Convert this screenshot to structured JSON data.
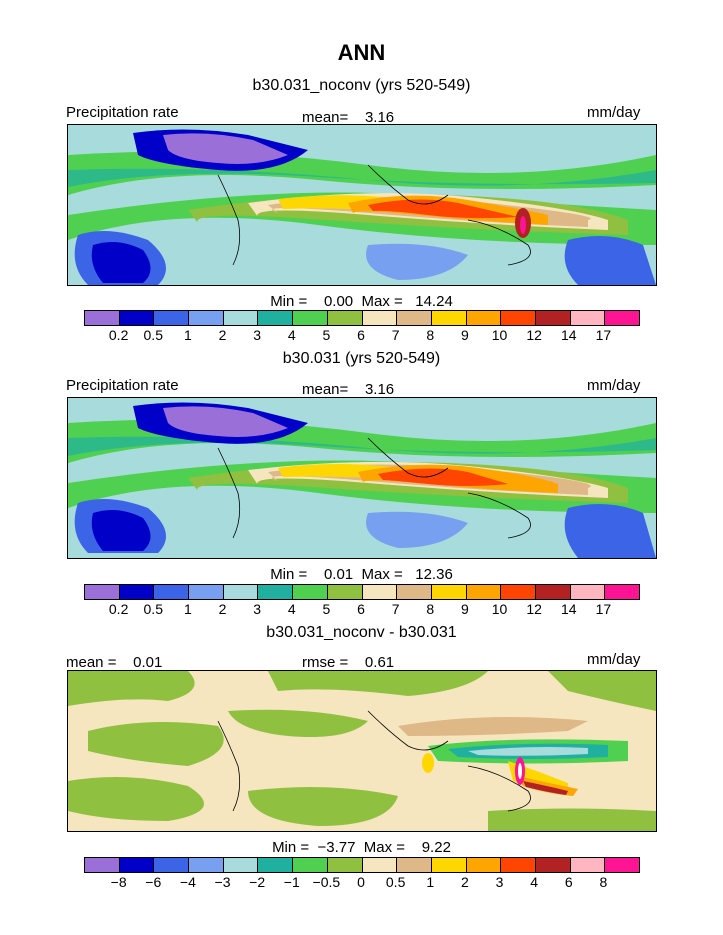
{
  "figure_title": "ANN",
  "panels": [
    {
      "title": "b30.031_noconv (yrs 520-549)",
      "left_label": "Precipitation rate",
      "center_label": "mean=    3.16",
      "right_label": "mm/day",
      "minmax": "Min =    0.00  Max =   14.24",
      "scale": "precip"
    },
    {
      "title": "b30.031 (yrs 520-549)",
      "left_label": "Precipitation rate",
      "center_label": "mean=    3.16",
      "right_label": "mm/day",
      "minmax": "Min =    0.01  Max =   12.36",
      "scale": "precip"
    },
    {
      "title": "b30.031_noconv - b30.031",
      "left_label": "mean =    0.01",
      "center_label": "rmse =    0.61",
      "right_label": "mm/day",
      "minmax": "Min =  −3.77  Max =    9.22",
      "scale": "diff"
    }
  ],
  "colorbars": {
    "precip": {
      "colors": [
        "#9b6fd8",
        "#0000c8",
        "#3c64e6",
        "#78a0f0",
        "#a8dcdc",
        "#20b0a0",
        "#50d050",
        "#90c040",
        "#f5e6c0",
        "#deb887",
        "#ffd700",
        "#ffa500",
        "#ff4500",
        "#b22222",
        "#ffb6c1",
        "#ff1493"
      ],
      "labels": [
        "0.2",
        "0.5",
        "1",
        "2",
        "3",
        "4",
        "5",
        "6",
        "7",
        "8",
        "9",
        "10",
        "12",
        "14",
        "17"
      ]
    },
    "diff": {
      "colors": [
        "#9b6fd8",
        "#0000c8",
        "#3c64e6",
        "#78a0f0",
        "#a8dcdc",
        "#20b0a0",
        "#50d050",
        "#90c040",
        "#f5e6c0",
        "#deb887",
        "#ffd700",
        "#ffa500",
        "#ff4500",
        "#b22222",
        "#ffb6c1",
        "#ff1493"
      ],
      "labels": [
        "−8",
        "−6",
        "−4",
        "−3",
        "−2",
        "−1",
        "−0.5",
        "0",
        "0.5",
        "1",
        "2",
        "3",
        "4",
        "6",
        "8"
      ]
    }
  }
}
